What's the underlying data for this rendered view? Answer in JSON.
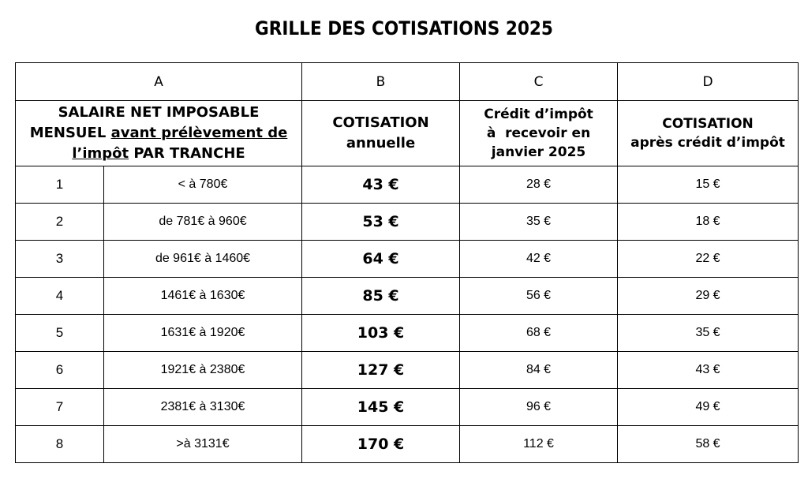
{
  "title": "GRILLE DES COTISATIONS 2025",
  "columns": [
    "A",
    "B",
    "C",
    "D"
  ],
  "header": {
    "a_line1": "SALAIRE NET IMPOSABLE",
    "a_line2_pre": "MENSUEL ",
    "a_line2_u": "avant prélèvement de",
    "a_line3_u": "l’impôt",
    "a_line3_post": " PAR TRANCHE",
    "b_line1": "COTISATION",
    "b_line2": "annuelle",
    "c_line1": "Crédit d’impôt",
    "c_line2": "à  recevoir en",
    "c_line3": "janvier 2025",
    "d_line1": "COTISATION",
    "d_line2": "après crédit d’impôt"
  },
  "rows": [
    {
      "num": "1",
      "range": "< à 780€",
      "cotisation": "43 €",
      "credit": "28 €",
      "apres": "15 €"
    },
    {
      "num": "2",
      "range": "de 781€ à 960€",
      "cotisation": "53 €",
      "credit": "35 €",
      "apres": "18 €"
    },
    {
      "num": "3",
      "range": "de 961€ à 1460€",
      "cotisation": "64 €",
      "credit": "42 €",
      "apres": "22 €"
    },
    {
      "num": "4",
      "range": "1461€ à 1630€",
      "cotisation": "85 €",
      "credit": "56 €",
      "apres": "29 €"
    },
    {
      "num": "5",
      "range": "1631€ à 1920€",
      "cotisation": "103 €",
      "credit": "68 €",
      "apres": "35 €"
    },
    {
      "num": "6",
      "range": "1921€ à 2380€",
      "cotisation": "127 €",
      "credit": "84 €",
      "apres": "43 €"
    },
    {
      "num": "7",
      "range": "2381€ à 3130€",
      "cotisation": "145 €",
      "credit": "96 €",
      "apres": "49 €"
    },
    {
      "num": "8",
      "range": ">à 3131€",
      "cotisation": "170 €",
      "credit": "112 €",
      "apres": "58 €"
    }
  ]
}
